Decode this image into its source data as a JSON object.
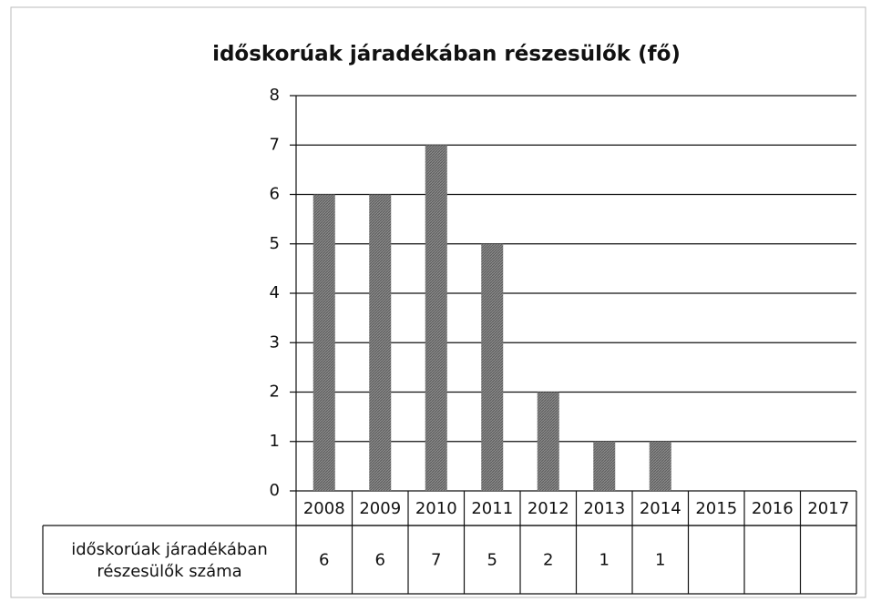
{
  "chart_data": {
    "type": "bar",
    "title": "időskorúak járadékában részesülők (fő)",
    "categories": [
      "2008",
      "2009",
      "2010",
      "2011",
      "2012",
      "2013",
      "2014",
      "2015",
      "2016",
      "2017"
    ],
    "values": [
      6,
      6,
      7,
      5,
      2,
      1,
      1,
      null,
      null,
      null
    ],
    "table_label": "időskorúak járadékában részesülők száma",
    "color": "#7f7f7f",
    "ylim": [
      0,
      8
    ],
    "yticks": [
      0,
      1,
      2,
      3,
      4,
      5,
      6,
      7,
      8
    ],
    "grid": true
  }
}
